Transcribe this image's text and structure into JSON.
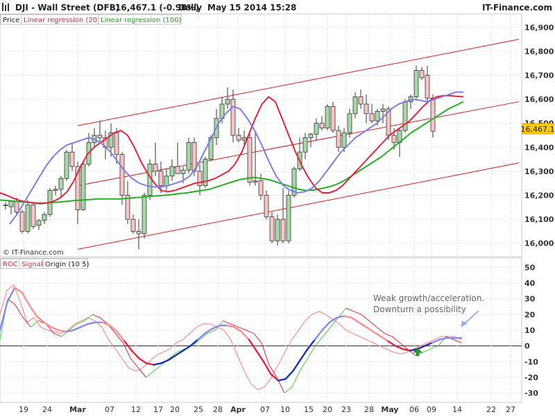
{
  "header": {
    "instrument": "DJI - Wall Street (DFB)",
    "price_change": "16,467.1 (-0.90%)",
    "period": "Daily",
    "datetime": "May 15 2014 15:28",
    "brand": "IT-Finance.com"
  },
  "legend_top": [
    "Price",
    "Linear regression (20)",
    "Linear regression (100)"
  ],
  "legend_bottom": [
    "ROC",
    "Signal",
    "Origin (10 5)"
  ],
  "watermark": "© IT-Finance.com",
  "annotation": [
    "Weak growth/acceleration.",
    "Downturn a possibility"
  ],
  "colors": {
    "up_candle": "#a8d8a8",
    "down_candle": "#f4c6c6",
    "reg20": "#e8203c",
    "reg100": "#22b022",
    "smooth": "#7b7bf0",
    "channel": "#e01818",
    "roc": "#ff8c8c",
    "signal_up": "#44d044",
    "signal_down": "#e8203c",
    "origin_up": "#1a2fbf",
    "origin_down": "#e8203c",
    "origin_light": "#8888ee",
    "arrow": "#22a022"
  },
  "chart_data": [
    {
      "type": "candlestick",
      "x_ticks": [
        "19",
        "24",
        "Mar",
        "07",
        "12",
        "17",
        "20",
        "25",
        "28",
        "Apr",
        "07",
        "10",
        "15",
        "20",
        "23",
        "28",
        "May",
        "06",
        "09",
        "14",
        "22",
        "27"
      ],
      "price_label": "16,467.1",
      "ylim": [
        15950,
        16950
      ],
      "y_ticks": [
        "16,000",
        "16,100",
        "16,200",
        "16,300",
        "16,400",
        "16,500",
        "16,600",
        "16,700",
        "16,800",
        "16,900"
      ],
      "candles": [
        [
          16158,
          16172,
          16140,
          16160
        ],
        [
          16152,
          16180,
          16120,
          16175
        ],
        [
          16175,
          16190,
          16120,
          16130
        ],
        [
          16130,
          16140,
          16040,
          16050
        ],
        [
          16050,
          16180,
          16040,
          16160
        ],
        [
          16160,
          16170,
          16060,
          16070
        ],
        [
          16075,
          16100,
          16055,
          16095
        ],
        [
          16095,
          16130,
          16080,
          16120
        ],
        [
          16120,
          16230,
          16110,
          16220
        ],
        [
          16220,
          16240,
          16200,
          16225
        ],
        [
          16225,
          16280,
          16190,
          16270
        ],
        [
          16270,
          16390,
          16260,
          16380
        ],
        [
          16380,
          16420,
          16300,
          16320
        ],
        [
          16320,
          16340,
          16080,
          16140
        ],
        [
          16140,
          16340,
          16135,
          16330
        ],
        [
          16330,
          16460,
          16320,
          16420
        ],
        [
          16420,
          16480,
          16400,
          16450
        ],
        [
          16450,
          16510,
          16420,
          16440
        ],
        [
          16440,
          16470,
          16350,
          16400
        ],
        [
          16400,
          16500,
          16360,
          16460
        ],
        [
          16460,
          16480,
          16330,
          16370
        ],
        [
          16370,
          16380,
          16160,
          16200
        ],
        [
          16200,
          16260,
          16080,
          16100
        ],
        [
          16100,
          16120,
          16040,
          16050
        ],
        [
          16050,
          16100,
          15975,
          16040
        ],
        [
          16040,
          16210,
          16020,
          16200
        ],
        [
          16200,
          16350,
          16180,
          16330
        ],
        [
          16330,
          16420,
          16280,
          16300
        ],
        [
          16300,
          16340,
          16210,
          16240
        ],
        [
          16240,
          16310,
          16220,
          16280
        ],
        [
          16280,
          16350,
          16260,
          16320
        ],
        [
          16320,
          16420,
          16290,
          16290
        ],
        [
          16290,
          16320,
          16250,
          16305
        ],
        [
          16305,
          16440,
          16290,
          16420
        ],
        [
          16420,
          16440,
          16280,
          16300
        ],
        [
          16300,
          16330,
          16200,
          16240
        ],
        [
          16240,
          16360,
          16230,
          16350
        ],
        [
          16350,
          16450,
          16340,
          16440
        ],
        [
          16440,
          16560,
          16410,
          16520
        ],
        [
          16520,
          16610,
          16500,
          16580
        ],
        [
          16580,
          16650,
          16560,
          16600
        ],
        [
          16600,
          16640,
          16420,
          16450
        ],
        [
          16450,
          16480,
          16420,
          16430
        ],
        [
          16430,
          16470,
          16400,
          16440
        ],
        [
          16440,
          16460,
          16240,
          16255
        ],
        [
          16255,
          16460,
          16240,
          16260
        ],
        [
          16260,
          16290,
          16180,
          16200
        ],
        [
          16200,
          16220,
          16100,
          16110
        ],
        [
          16110,
          16130,
          16000,
          16010
        ],
        [
          16010,
          16120,
          15990,
          16100
        ],
        [
          16100,
          16230,
          16000,
          16010
        ],
        [
          16010,
          16220,
          16000,
          16200
        ],
        [
          16200,
          16320,
          16190,
          16310
        ],
        [
          16310,
          16440,
          16300,
          16380
        ],
        [
          16380,
          16460,
          16350,
          16440
        ],
        [
          16440,
          16460,
          16400,
          16455
        ],
        [
          16455,
          16520,
          16430,
          16500
        ],
        [
          16500,
          16530,
          16470,
          16480
        ],
        [
          16480,
          16580,
          16470,
          16570
        ],
        [
          16570,
          16590,
          16460,
          16470
        ],
        [
          16470,
          16490,
          16380,
          16400
        ],
        [
          16400,
          16480,
          16380,
          16460
        ],
        [
          16460,
          16560,
          16440,
          16540
        ],
        [
          16540,
          16630,
          16520,
          16610
        ],
        [
          16610,
          16640,
          16560,
          16580
        ],
        [
          16580,
          16620,
          16500,
          16540
        ],
        [
          16540,
          16580,
          16500,
          16510
        ],
        [
          16510,
          16560,
          16490,
          16550
        ],
        [
          16550,
          16580,
          16500,
          16560
        ],
        [
          16560,
          16570,
          16430,
          16450
        ],
        [
          16450,
          16480,
          16390,
          16420
        ],
        [
          16420,
          16480,
          16360,
          16470
        ],
        [
          16470,
          16600,
          16460,
          16590
        ],
        [
          16590,
          16620,
          16560,
          16610
        ],
        [
          16610,
          16740,
          16600,
          16720
        ],
        [
          16720,
          16735,
          16680,
          16690
        ],
        [
          16700,
          16740,
          16590,
          16605
        ],
        [
          16605,
          16620,
          16440,
          16467
        ]
      ],
      "linear_regression_20": [
        16210,
        16200,
        16188,
        16178,
        16172,
        16168,
        16165,
        16168,
        16175,
        16190,
        16215,
        16260,
        16320,
        16370,
        16400,
        16420,
        16440,
        16460,
        16470,
        16450,
        16400,
        16340,
        16290,
        16250,
        16220,
        16215,
        16220,
        16230,
        16240,
        16250,
        16255,
        16260,
        16270,
        16285,
        16300,
        16330,
        16380,
        16450,
        16520,
        16580,
        16610,
        16590,
        16520,
        16450,
        16380,
        16320,
        16270,
        16230,
        16210,
        16210,
        16220,
        16240,
        16270,
        16300,
        16330,
        16360,
        16390,
        16420,
        16450,
        16470,
        16490,
        16510,
        16540,
        16570,
        16595,
        16610,
        16615,
        16615,
        16612,
        16610
      ],
      "linear_regression_100": [
        16180,
        16178,
        16175,
        16172,
        16170,
        16168,
        16168,
        16170,
        16172,
        16175,
        16178,
        16180,
        16182,
        16185,
        16185,
        16185,
        16185,
        16187,
        16190,
        16192,
        16195,
        16198,
        16200,
        16203,
        16207,
        16210,
        16215,
        16220,
        16225,
        16235,
        16245,
        16255,
        16265,
        16270,
        16275,
        16270,
        16265,
        16255,
        16245,
        16235,
        16225,
        16220,
        16222,
        16228,
        16235,
        16245,
        16260,
        16280,
        16300,
        16320,
        16340,
        16360,
        16385,
        16410,
        16435,
        16460,
        16480,
        16500,
        16520,
        16540,
        16560,
        16575,
        16590
      ],
      "smoothed_price": [
        16080,
        16120,
        16170,
        16220,
        16270,
        16320,
        16360,
        16390,
        16410,
        16420,
        16430,
        16440,
        16430,
        16410,
        16380,
        16340,
        16300,
        16270,
        16250,
        16240,
        16235,
        16235,
        16240,
        16250,
        16260,
        16280,
        16320,
        16380,
        16440,
        16500,
        16540,
        16570,
        16560,
        16520,
        16470,
        16410,
        16340,
        16280,
        16240,
        16220,
        16210,
        16215,
        16230,
        16260,
        16300,
        16340,
        16380,
        16410,
        16440,
        16460,
        16480,
        16500,
        16530,
        16560,
        16580,
        16590,
        16600,
        16595,
        16590,
        16600,
        16610,
        16620,
        16630,
        16630
      ],
      "channel": {
        "upper": [
          [
            16490,
            16850
          ]
        ],
        "middle": [
          [
            16240,
            16590
          ]
        ],
        "lower": [
          [
            15975,
            16335
          ]
        ]
      }
    },
    {
      "type": "line",
      "ylim": [
        -35,
        55
      ],
      "y_ticks": [
        "50",
        "40",
        "30",
        "20",
        "10",
        "0",
        "-10",
        "-20",
        "-30"
      ],
      "roc": [
        20,
        35,
        39,
        28,
        15,
        18,
        12,
        10,
        9,
        8,
        10,
        14,
        16,
        18,
        16,
        12,
        4,
        -2,
        -8,
        -14,
        -16,
        -14,
        -10,
        -6,
        -4,
        -2,
        2,
        4,
        8,
        12,
        14,
        14,
        12,
        10,
        4,
        -6,
        -16,
        -24,
        -28,
        -26,
        -20,
        -12,
        -4,
        4,
        10,
        16,
        20,
        22,
        20,
        17,
        14,
        10,
        8,
        6,
        4,
        2,
        0,
        -2,
        -4,
        -5,
        -4,
        -2,
        0,
        2,
        4,
        6,
        6,
        6,
        4
      ],
      "signal": [
        4,
        30,
        26,
        18,
        12,
        16,
        14,
        8,
        6,
        10,
        14,
        16,
        20,
        18,
        14,
        8,
        2,
        -8,
        -14,
        -20,
        -16,
        -12,
        -8,
        -4,
        -2,
        0,
        4,
        8,
        10,
        16,
        14,
        12,
        10,
        8,
        2,
        -12,
        -20,
        -30,
        -26,
        -16,
        -8,
        0,
        6,
        12,
        18,
        24,
        22,
        20,
        16,
        12,
        8,
        6,
        2,
        -2,
        -6,
        -4,
        -2,
        0,
        6,
        4,
        2
      ],
      "origin": [
        10,
        28,
        37,
        34,
        26,
        19,
        15,
        12,
        10,
        9,
        10,
        12,
        14,
        15,
        15,
        13,
        9,
        3,
        -3,
        -8,
        -11,
        -12,
        -11,
        -9,
        -6,
        -3,
        0,
        4,
        8,
        11,
        13,
        13,
        12,
        9,
        4,
        -3,
        -10,
        -18,
        -22,
        -21,
        -16,
        -9,
        -2,
        4,
        10,
        15,
        18,
        19,
        18,
        15,
        12,
        9,
        6,
        3,
        0,
        -2,
        -3,
        -2,
        0,
        2,
        4,
        5,
        5,
        5
      ],
      "annotation_arrow": "down-left",
      "marker": "up-arrow"
    }
  ]
}
